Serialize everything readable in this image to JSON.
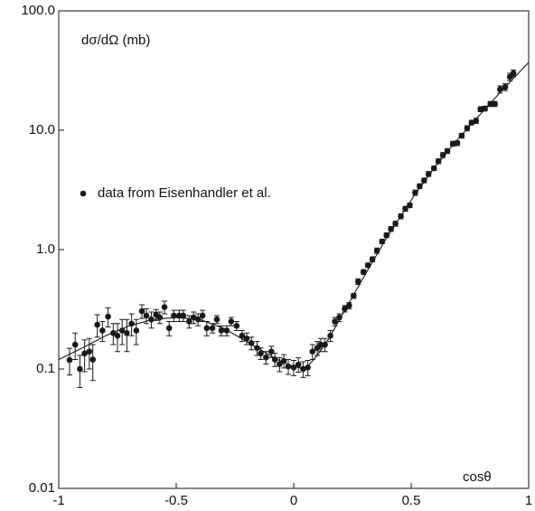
{
  "chart_data": {
    "type": "scatter",
    "y_label": "dσ/dΩ (mb)",
    "x_label": "cosθ",
    "log_y": true,
    "xlim": [
      -1,
      1
    ],
    "ylim": [
      0.01,
      100
    ],
    "xticks": [
      -1,
      -0.5,
      0,
      0.5,
      1
    ],
    "yticks": [
      0.01,
      0.1,
      {
        "value": 1,
        "label": "1.0"
      },
      {
        "value": 10,
        "label": "10.0"
      },
      {
        "value": 100,
        "label": "100.0"
      }
    ],
    "legend": "left",
    "x": [
      -0.954,
      -0.93,
      -0.91,
      -0.89,
      -0.87,
      -0.855,
      -0.836,
      -0.814,
      -0.79,
      -0.768,
      -0.75,
      -0.73,
      -0.71,
      -0.69,
      -0.67,
      -0.646,
      -0.627,
      -0.606,
      -0.586,
      -0.57,
      -0.55,
      -0.53,
      -0.51,
      -0.487,
      -0.47,
      -0.445,
      -0.426,
      -0.407,
      -0.388,
      -0.37,
      -0.346,
      -0.327,
      -0.308,
      -0.285,
      -0.266,
      -0.243,
      -0.22,
      -0.2,
      -0.18,
      -0.156,
      -0.14,
      -0.118,
      -0.095,
      -0.08,
      -0.06,
      -0.042,
      -0.023,
      0,
      0.02,
      0.04,
      0.06,
      0.08,
      0.1,
      0.115,
      0.133,
      0.156,
      0.175,
      0.194,
      0.217,
      0.236,
      0.255,
      0.274,
      0.297,
      0.316,
      0.335,
      0.354,
      0.376,
      0.395,
      0.414,
      0.433,
      0.456,
      0.475,
      0.494,
      0.517,
      0.536,
      0.555,
      0.574,
      0.597,
      0.616,
      0.635,
      0.654,
      0.677,
      0.696,
      0.715,
      0.738,
      0.757,
      0.776,
      0.795,
      0.814,
      0.837,
      0.856,
      0.878,
      0.9,
      0.92,
      0.935
    ],
    "series": [
      {
        "name": "data from Eisenhandler et al.",
        "color": "#1a1a1a",
        "values": [
          0.119,
          0.16,
          0.1,
          0.135,
          0.14,
          0.12,
          0.235,
          0.21,
          0.275,
          0.2,
          0.19,
          0.21,
          0.2,
          0.24,
          0.21,
          0.305,
          0.28,
          0.26,
          0.285,
          0.27,
          0.33,
          0.22,
          0.28,
          0.28,
          0.28,
          0.25,
          0.27,
          0.26,
          0.28,
          0.22,
          0.22,
          0.26,
          0.21,
          0.21,
          0.25,
          0.23,
          0.19,
          0.18,
          0.165,
          0.15,
          0.135,
          0.125,
          0.14,
          0.12,
          0.11,
          0.117,
          0.105,
          0.103,
          0.109,
          0.1,
          0.103,
          0.14,
          0.15,
          0.16,
          0.16,
          0.19,
          0.25,
          0.27,
          0.32,
          0.34,
          0.41,
          0.54,
          0.65,
          0.74,
          0.83,
          0.98,
          1.17,
          1.32,
          1.49,
          1.65,
          1.9,
          2.2,
          2.35,
          3.0,
          3.4,
          3.8,
          4.3,
          4.8,
          5.5,
          6.2,
          6.7,
          7.7,
          7.8,
          9.0,
          10.4,
          11.6,
          12.0,
          15.0,
          15.2,
          16.6,
          16.6,
          22,
          23,
          28,
          30
        ],
        "errors": [
          0.03,
          0.04,
          0.03,
          0.04,
          0.04,
          0.04,
          0.05,
          0.04,
          0.05,
          0.04,
          0.05,
          0.05,
          0.06,
          0.05,
          0.05,
          0.04,
          0.04,
          0.04,
          0.03,
          0.03,
          0.04,
          0.03,
          0.03,
          0.03,
          0.03,
          0.03,
          0.03,
          0.03,
          0.03,
          0.03,
          0.02,
          0.02,
          0.02,
          0.02,
          0.02,
          0.02,
          0.02,
          0.02,
          0.02,
          0.02,
          0.015,
          0.015,
          0.015,
          0.015,
          0.015,
          0.015,
          0.015,
          0.015,
          0.015,
          0.015,
          0.015,
          0.02,
          0.02,
          0.02,
          0.02,
          0.02,
          0.02,
          0.02,
          0.02,
          0.02,
          0.02,
          0.03,
          0.03,
          0.03,
          0.04,
          0.05,
          0.05,
          0.06,
          0.07,
          0.08,
          0.09,
          0.1,
          0.1,
          0.15,
          0.15,
          0.17,
          0.2,
          0.2,
          0.25,
          0.3,
          0.3,
          0.35,
          0.35,
          0.4,
          0.5,
          0.5,
          0.6,
          0.7,
          0.7,
          0.8,
          0.8,
          1.5,
          1.5,
          2,
          2
        ]
      }
    ],
    "fit": {
      "color": "#1a1a1a",
      "x": [
        -1,
        -0.9,
        -0.8,
        -0.7,
        -0.6,
        -0.5,
        -0.4,
        -0.3,
        -0.2,
        -0.1,
        -0.05,
        0,
        0.05,
        0.1,
        0.15,
        0.2,
        0.3,
        0.4,
        0.5,
        0.6,
        0.7,
        0.8,
        0.9,
        1.0
      ],
      "values": [
        0.12,
        0.15,
        0.19,
        0.23,
        0.26,
        0.27,
        0.26,
        0.22,
        0.17,
        0.13,
        0.115,
        0.105,
        0.1,
        0.13,
        0.18,
        0.27,
        0.6,
        1.3,
        2.6,
        4.9,
        8.5,
        14,
        23,
        37
      ]
    }
  }
}
